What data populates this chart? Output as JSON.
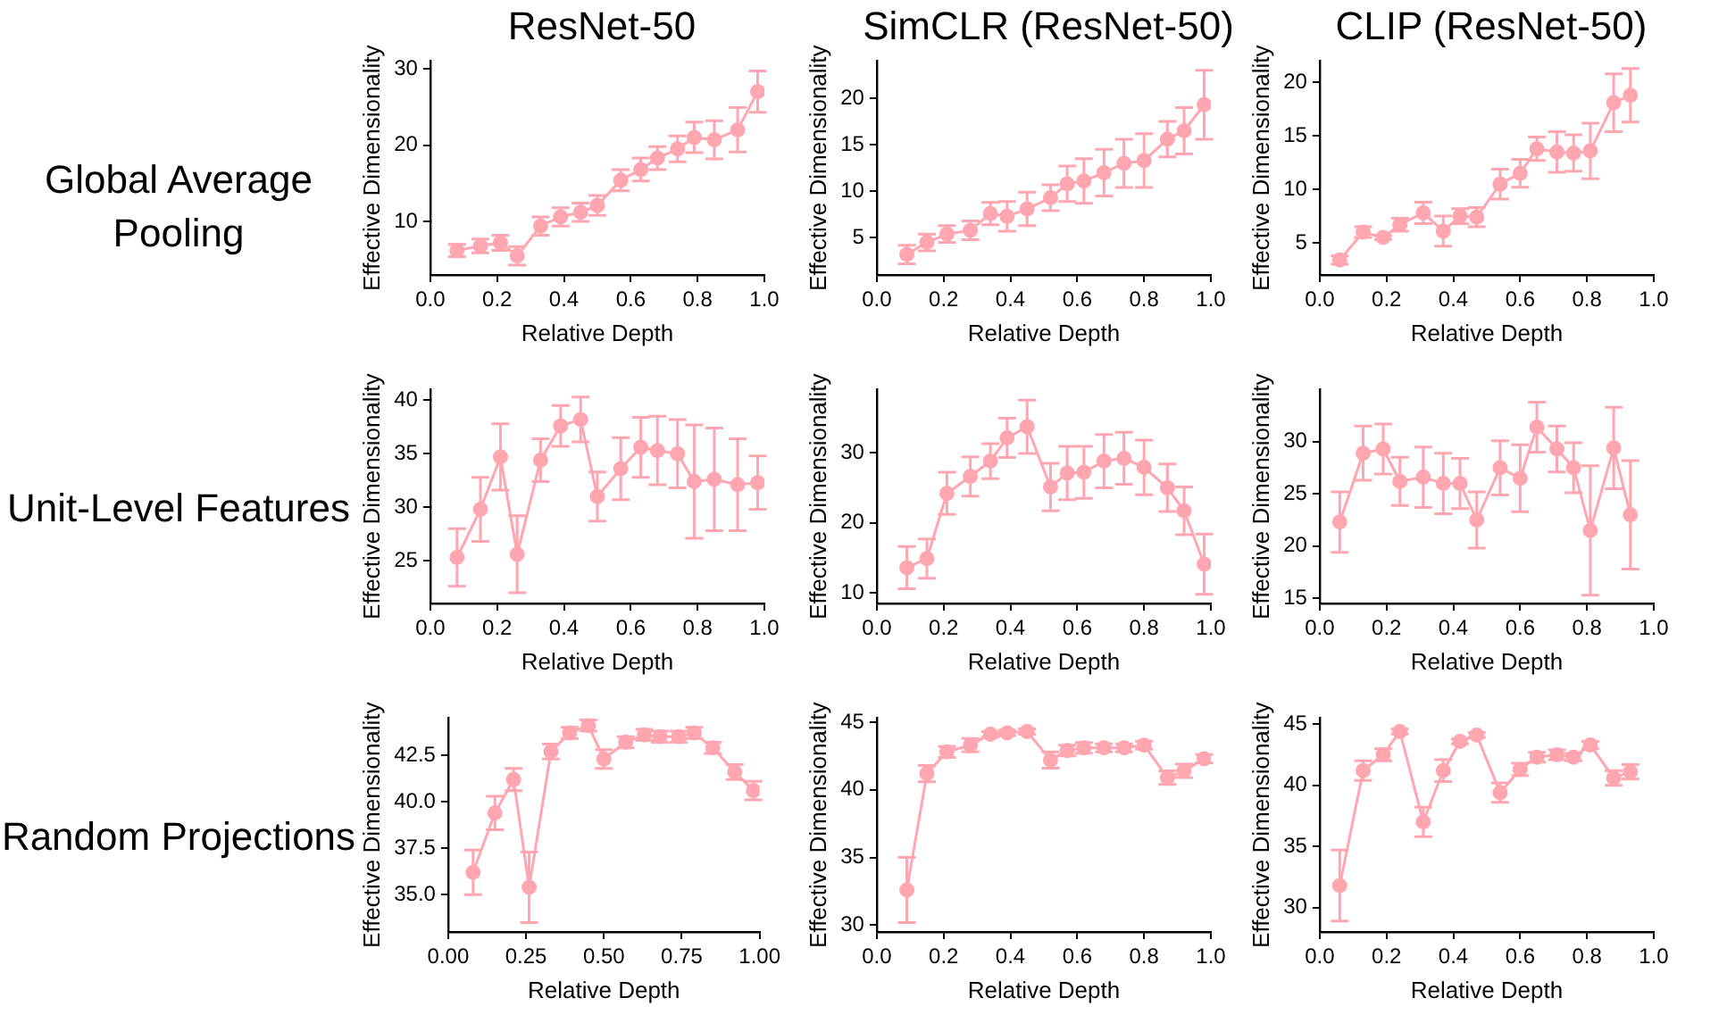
{
  "chart_data": [
    {
      "type": "line",
      "title": "ResNet-50",
      "annotations": [
        "Global Average Pooling"
      ],
      "xlabel": "Relative Depth",
      "ylabel": "Effective Dimensionality",
      "marker": "circle",
      "grid": false,
      "xlim": [
        0,
        1
      ],
      "xticks": [
        {
          "value": 0,
          "label": "0.0"
        },
        {
          "value": 0.2,
          "label": "0.2"
        },
        {
          "value": 0.4,
          "label": "0.4"
        },
        {
          "value": 0.6,
          "label": "0.6"
        },
        {
          "value": 0.8,
          "label": "0.8"
        },
        {
          "value": 1,
          "label": "1.0"
        }
      ],
      "ylim": [
        3,
        31
      ],
      "yticks": [
        10,
        20,
        30
      ],
      "x": [
        0.08,
        0.15,
        0.21,
        0.26,
        0.33,
        0.39,
        0.45,
        0.5,
        0.57,
        0.63,
        0.68,
        0.74,
        0.79,
        0.85,
        0.92,
        0.98
      ],
      "series": [
        {
          "color": "#ffa6b0",
          "values": [
            6.2,
            6.8,
            7.2,
            5.5,
            9.4,
            10.6,
            11.2,
            12.1,
            15.4,
            16.8,
            18.3,
            19.5,
            21.0,
            20.7,
            22.0,
            27.0
          ],
          "errors": [
            0.8,
            0.9,
            1.0,
            1.2,
            1.2,
            1.2,
            1.2,
            1.3,
            1.4,
            1.5,
            1.5,
            1.7,
            2.0,
            2.5,
            2.9,
            2.7
          ]
        }
      ]
    },
    {
      "type": "line",
      "title": "SimCLR (ResNet-50)",
      "xlabel": "Relative Depth",
      "ylabel": "Effective Dimensionality",
      "marker": "circle",
      "grid": false,
      "xlim": [
        0,
        1
      ],
      "xticks": [
        {
          "value": 0,
          "label": "0.0"
        },
        {
          "value": 0.2,
          "label": "0.2"
        },
        {
          "value": 0.4,
          "label": "0.4"
        },
        {
          "value": 0.6,
          "label": "0.6"
        },
        {
          "value": 0.8,
          "label": "0.8"
        },
        {
          "value": 1,
          "label": "1.0"
        }
      ],
      "ylim": [
        1,
        24
      ],
      "yticks": [
        5,
        10,
        15,
        20
      ],
      "x": [
        0.09,
        0.15,
        0.21,
        0.28,
        0.34,
        0.39,
        0.45,
        0.52,
        0.57,
        0.62,
        0.68,
        0.74,
        0.8,
        0.87,
        0.92,
        0.98
      ],
      "series": [
        {
          "color": "#ffa6b0",
          "values": [
            3.2,
            4.5,
            5.4,
            5.8,
            7.6,
            7.3,
            8.1,
            9.3,
            10.8,
            11.1,
            12.0,
            13.0,
            13.3,
            15.6,
            16.5,
            19.3
          ],
          "errors": [
            1.0,
            0.9,
            0.9,
            1.0,
            1.2,
            1.6,
            1.8,
            1.4,
            1.9,
            2.4,
            2.5,
            2.6,
            2.9,
            1.9,
            2.5,
            3.7
          ]
        }
      ]
    },
    {
      "type": "line",
      "title": "CLIP (ResNet-50)",
      "xlabel": "Relative Depth",
      "ylabel": "Effective Dimensionality",
      "marker": "circle",
      "grid": false,
      "xlim": [
        0,
        1
      ],
      "xticks": [
        {
          "value": 0,
          "label": "0.0"
        },
        {
          "value": 0.2,
          "label": "0.2"
        },
        {
          "value": 0.4,
          "label": "0.4"
        },
        {
          "value": 0.6,
          "label": "0.6"
        },
        {
          "value": 0.8,
          "label": "0.8"
        },
        {
          "value": 1,
          "label": "1.0"
        }
      ],
      "ylim": [
        2,
        22
      ],
      "yticks": [
        5,
        10,
        15,
        20
      ],
      "x": [
        0.06,
        0.13,
        0.19,
        0.24,
        0.31,
        0.37,
        0.42,
        0.47,
        0.54,
        0.6,
        0.65,
        0.71,
        0.76,
        0.81,
        0.88,
        0.93
      ],
      "series": [
        {
          "color": "#ffa6b0",
          "values": [
            3.4,
            6.0,
            5.5,
            6.7,
            7.8,
            6.1,
            7.5,
            7.4,
            10.5,
            11.5,
            13.8,
            13.5,
            13.4,
            13.6,
            18.1,
            18.8
          ],
          "errors": [
            0.4,
            0.5,
            0.2,
            0.6,
            1.0,
            1.4,
            0.7,
            0.9,
            1.4,
            1.3,
            1.1,
            1.9,
            1.7,
            2.6,
            2.7,
            2.5
          ]
        }
      ]
    },
    {
      "type": "line",
      "annotations": [
        "Unit-Level Features"
      ],
      "xlabel": "Relative Depth",
      "ylabel": "Effective Dimensionality",
      "marker": "circle",
      "grid": false,
      "xlim": [
        0,
        1
      ],
      "xticks": [
        {
          "value": 0,
          "label": "0.0"
        },
        {
          "value": 0.2,
          "label": "0.2"
        },
        {
          "value": 0.4,
          "label": "0.4"
        },
        {
          "value": 0.6,
          "label": "0.6"
        },
        {
          "value": 0.8,
          "label": "0.8"
        },
        {
          "value": 1,
          "label": "1.0"
        }
      ],
      "ylim": [
        21,
        41
      ],
      "yticks": [
        25,
        30,
        35,
        40
      ],
      "x": [
        0.08,
        0.15,
        0.21,
        0.26,
        0.33,
        0.39,
        0.45,
        0.5,
        0.57,
        0.63,
        0.68,
        0.74,
        0.79,
        0.85,
        0.92,
        0.98
      ],
      "series": [
        {
          "color": "#ffa6b0",
          "values": [
            25.3,
            29.8,
            34.7,
            25.6,
            34.4,
            37.6,
            38.2,
            31.0,
            33.6,
            35.6,
            35.3,
            35.0,
            32.4,
            32.6,
            32.1,
            32.3
          ],
          "errors": [
            2.7,
            3.0,
            3.1,
            3.6,
            2.0,
            1.9,
            2.1,
            2.3,
            2.9,
            2.8,
            3.2,
            3.2,
            5.3,
            4.8,
            4.3,
            2.5
          ]
        }
      ]
    },
    {
      "type": "line",
      "xlabel": "Relative Depth",
      "ylabel": "Effective Dimensionality",
      "marker": "circle",
      "grid": false,
      "xlim": [
        0,
        1
      ],
      "xticks": [
        {
          "value": 0,
          "label": "0.0"
        },
        {
          "value": 0.2,
          "label": "0.2"
        },
        {
          "value": 0.4,
          "label": "0.4"
        },
        {
          "value": 0.6,
          "label": "0.6"
        },
        {
          "value": 0.8,
          "label": "0.8"
        },
        {
          "value": 1,
          "label": "1.0"
        }
      ],
      "ylim": [
        8.5,
        39
      ],
      "yticks": [
        10,
        20,
        30
      ],
      "x": [
        0.09,
        0.15,
        0.21,
        0.28,
        0.34,
        0.39,
        0.45,
        0.52,
        0.57,
        0.62,
        0.68,
        0.74,
        0.8,
        0.87,
        0.92,
        0.98
      ],
      "series": [
        {
          "color": "#ffa6b0",
          "values": [
            13.6,
            14.9,
            24.2,
            26.6,
            28.8,
            32.1,
            33.7,
            25.1,
            27.1,
            27.2,
            28.8,
            29.2,
            27.9,
            25.0,
            21.7,
            14.1
          ],
          "errors": [
            3.0,
            2.8,
            3.0,
            2.8,
            2.5,
            2.8,
            3.8,
            3.4,
            3.8,
            3.7,
            3.8,
            3.7,
            3.9,
            3.4,
            3.4,
            4.3
          ]
        }
      ]
    },
    {
      "type": "line",
      "xlabel": "Relative Depth",
      "ylabel": "Effective Dimensionality",
      "marker": "circle",
      "grid": false,
      "xlim": [
        0,
        1
      ],
      "xticks": [
        {
          "value": 0,
          "label": "0.0"
        },
        {
          "value": 0.2,
          "label": "0.2"
        },
        {
          "value": 0.4,
          "label": "0.4"
        },
        {
          "value": 0.6,
          "label": "0.6"
        },
        {
          "value": 0.8,
          "label": "0.8"
        },
        {
          "value": 1,
          "label": "1.0"
        }
      ],
      "ylim": [
        14.5,
        35
      ],
      "yticks": [
        15,
        20,
        25,
        30
      ],
      "x": [
        0.06,
        0.13,
        0.19,
        0.24,
        0.31,
        0.37,
        0.42,
        0.47,
        0.54,
        0.6,
        0.65,
        0.71,
        0.76,
        0.81,
        0.88,
        0.93
      ],
      "series": [
        {
          "color": "#ffa6b0",
          "values": [
            22.3,
            28.9,
            29.3,
            26.2,
            26.6,
            26.0,
            26.0,
            22.5,
            27.5,
            26.5,
            31.4,
            29.3,
            27.5,
            21.5,
            29.4,
            23.0
          ],
          "errors": [
            2.9,
            2.6,
            2.4,
            2.3,
            2.9,
            2.9,
            2.4,
            2.7,
            2.6,
            3.2,
            2.4,
            2.2,
            2.4,
            6.2,
            3.9,
            5.2
          ]
        }
      ]
    },
    {
      "type": "line",
      "annotations": [
        "Random Projections"
      ],
      "xlabel": "Relative Depth",
      "ylabel": "Effective Dimensionality",
      "marker": "circle",
      "grid": false,
      "xlim": [
        0,
        1
      ],
      "xticks": [
        {
          "value": 0,
          "label": "0.00"
        },
        {
          "value": 0.25,
          "label": "0.25"
        },
        {
          "value": 0.5,
          "label": "0.50"
        },
        {
          "value": 0.75,
          "label": "0.75"
        },
        {
          "value": 1,
          "label": "1.00"
        }
      ],
      "ylim": [
        33,
        44.5
      ],
      "yticks": [
        {
          "value": 35,
          "label": "35.0"
        },
        37.5,
        {
          "value": 40,
          "label": "40.0"
        },
        42.5
      ],
      "x": [
        0.08,
        0.15,
        0.21,
        0.26,
        0.33,
        0.39,
        0.45,
        0.5,
        0.57,
        0.63,
        0.68,
        0.74,
        0.79,
        0.85,
        0.92,
        0.98
      ],
      "series": [
        {
          "color": "#ffa6b0",
          "values": [
            36.2,
            39.4,
            41.2,
            35.4,
            42.7,
            43.7,
            44.1,
            42.3,
            43.2,
            43.6,
            43.5,
            43.5,
            43.7,
            42.9,
            41.6,
            40.6
          ],
          "errors": [
            1.2,
            0.9,
            0.6,
            1.9,
            0.4,
            0.3,
            0.3,
            0.5,
            0.3,
            0.3,
            0.3,
            0.3,
            0.3,
            0.3,
            0.4,
            0.5
          ]
        }
      ]
    },
    {
      "type": "line",
      "xlabel": "Relative Depth",
      "ylabel": "Effective Dimensionality",
      "marker": "circle",
      "grid": false,
      "xlim": [
        0,
        1
      ],
      "xticks": [
        {
          "value": 0,
          "label": "0.0"
        },
        {
          "value": 0.2,
          "label": "0.2"
        },
        {
          "value": 0.4,
          "label": "0.4"
        },
        {
          "value": 0.6,
          "label": "0.6"
        },
        {
          "value": 0.8,
          "label": "0.8"
        },
        {
          "value": 1,
          "label": "1.0"
        }
      ],
      "ylim": [
        29.5,
        45.3
      ],
      "yticks": [
        30,
        35,
        40,
        45
      ],
      "x": [
        0.09,
        0.15,
        0.21,
        0.28,
        0.34,
        0.39,
        0.45,
        0.52,
        0.57,
        0.62,
        0.68,
        0.74,
        0.8,
        0.87,
        0.92,
        0.98
      ],
      "series": [
        {
          "color": "#ffa6b0",
          "values": [
            32.6,
            41.2,
            42.8,
            43.3,
            44.1,
            44.2,
            44.3,
            42.2,
            42.9,
            43.1,
            43.1,
            43.1,
            43.3,
            40.9,
            41.4,
            42.3
          ],
          "errors": [
            2.4,
            0.6,
            0.4,
            0.5,
            0.2,
            0.2,
            0.2,
            0.6,
            0.4,
            0.4,
            0.3,
            0.3,
            0.3,
            0.5,
            0.5,
            0.3
          ]
        }
      ]
    },
    {
      "type": "line",
      "xlabel": "Relative Depth",
      "ylabel": "Effective Dimensionality",
      "marker": "circle",
      "grid": false,
      "xlim": [
        0,
        1
      ],
      "xticks": [
        {
          "value": 0,
          "label": "0.0"
        },
        {
          "value": 0.2,
          "label": "0.2"
        },
        {
          "value": 0.4,
          "label": "0.4"
        },
        {
          "value": 0.6,
          "label": "0.6"
        },
        {
          "value": 0.8,
          "label": "0.8"
        },
        {
          "value": 1,
          "label": "1.0"
        }
      ],
      "ylim": [
        28,
        45.5
      ],
      "yticks": [
        30,
        35,
        40,
        45
      ],
      "x": [
        0.06,
        0.13,
        0.19,
        0.24,
        0.31,
        0.37,
        0.42,
        0.47,
        0.54,
        0.6,
        0.65,
        0.71,
        0.76,
        0.81,
        0.88,
        0.93
      ],
      "series": [
        {
          "color": "#ffa6b0",
          "values": [
            31.8,
            41.2,
            42.5,
            44.4,
            37.0,
            41.2,
            43.6,
            44.1,
            39.4,
            41.3,
            42.3,
            42.5,
            42.3,
            43.3,
            40.6,
            41.1
          ],
          "errors": [
            2.9,
            0.8,
            0.5,
            0.2,
            1.2,
            0.9,
            0.2,
            0.2,
            0.8,
            0.5,
            0.4,
            0.4,
            0.3,
            0.3,
            0.6,
            0.6
          ]
        }
      ]
    }
  ]
}
